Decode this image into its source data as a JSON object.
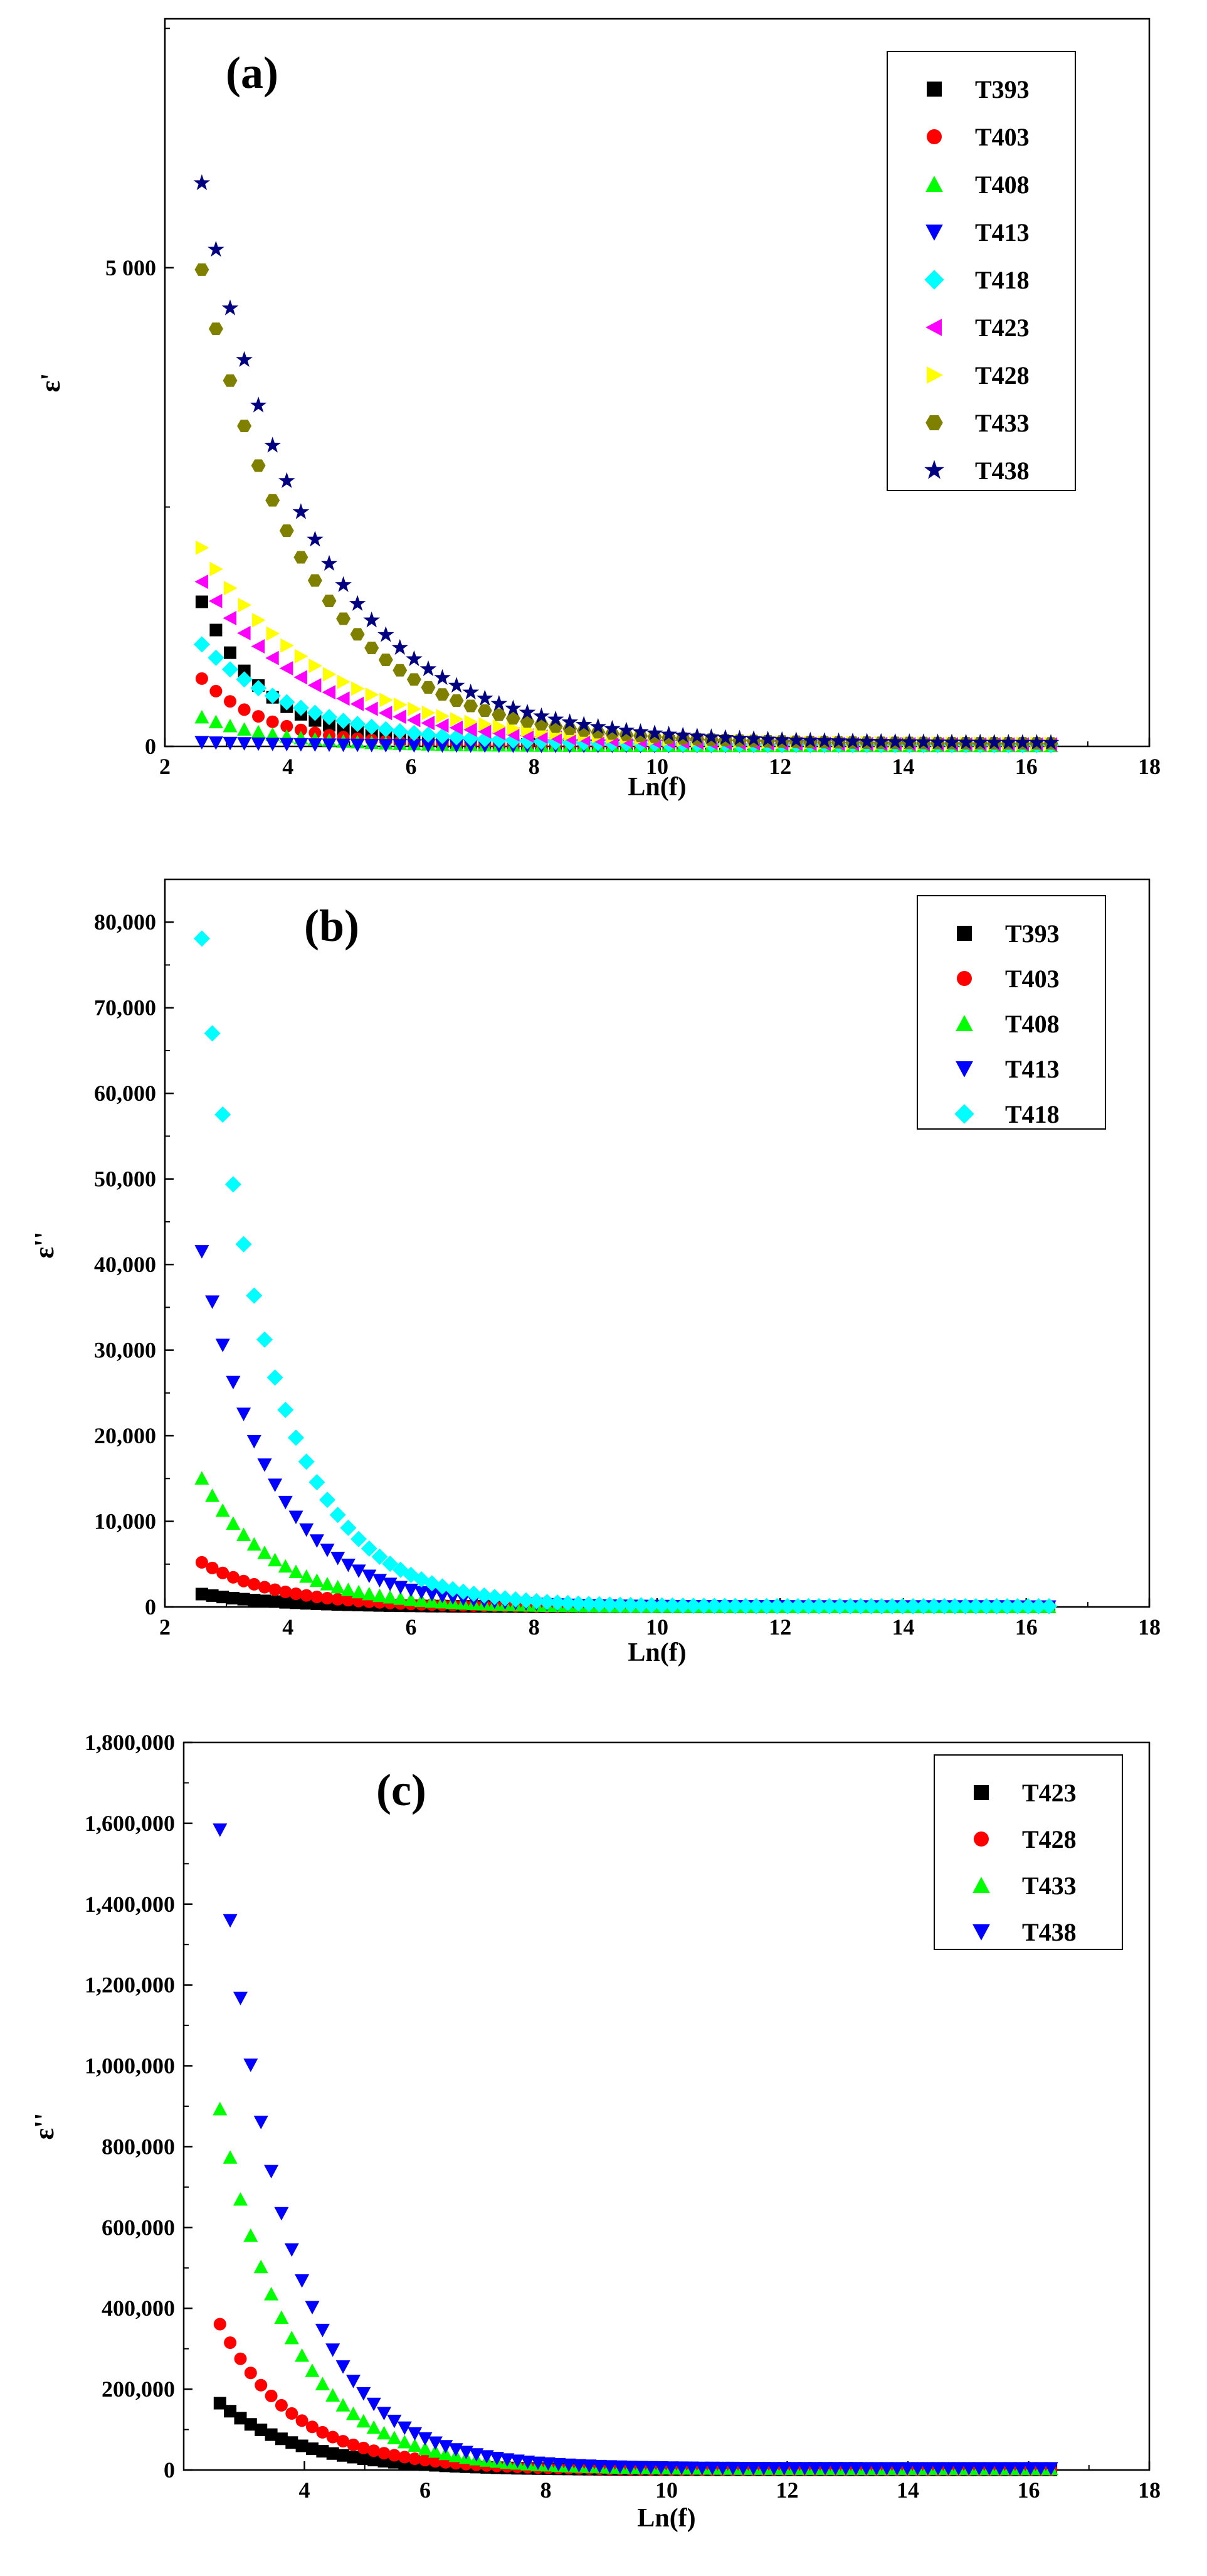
{
  "chart_data": [
    {
      "type": "scatter",
      "title": "(a)",
      "xlabel": "Ln(f)",
      "ylabel": "ε'",
      "xlim": [
        2,
        18
      ],
      "ylim": [
        0,
        7600
      ],
      "xticks": [
        2,
        4,
        6,
        8,
        10,
        12,
        14,
        16,
        18
      ],
      "yticks": [
        0,
        5000
      ],
      "ytick_labels": [
        "0",
        "5 000"
      ],
      "legend_position": "top-right",
      "x_start": 2.6,
      "x_end": 16.5,
      "x_step": 0.23,
      "series": [
        {
          "name": "T393",
          "marker": "square",
          "color": "#000000",
          "amp": 1500,
          "k": 0.95,
          "floor": 10
        },
        {
          "name": "T403",
          "marker": "circle",
          "color": "#ff0000",
          "amp": 700,
          "k": 0.9,
          "floor": 8
        },
        {
          "name": "T408",
          "marker": "triangle-up",
          "color": "#00ff00",
          "amp": 300,
          "k": 0.8,
          "floor": 5
        },
        {
          "name": "T413",
          "marker": "triangle-down",
          "color": "#0000ff",
          "amp": 40,
          "k": 0.5,
          "floor": 3
        },
        {
          "name": "T418",
          "marker": "diamond",
          "color": "#00ffff",
          "amp": 1050,
          "k": 0.62,
          "floor": 15
        },
        {
          "name": "T423",
          "marker": "triangle-left",
          "color": "#ff00ff",
          "amp": 1700,
          "k": 0.55,
          "floor": 20
        },
        {
          "name": "T428",
          "marker": "triangle-right",
          "color": "#ffff00",
          "amp": 2050,
          "k": 0.5,
          "floor": 25
        },
        {
          "name": "T433",
          "marker": "hexagon",
          "color": "#808000",
          "amp": 4950,
          "k": 0.58,
          "floor": 30
        },
        {
          "name": "T438",
          "marker": "star",
          "color": "#000080",
          "amp": 5850,
          "k": 0.55,
          "floor": 35
        }
      ]
    },
    {
      "type": "scatter",
      "title": "(b)",
      "xlabel": "Ln(f)",
      "ylabel": "ε''",
      "xlim": [
        2,
        18
      ],
      "ylim": [
        0,
        85000
      ],
      "xticks": [
        2,
        4,
        6,
        8,
        10,
        12,
        14,
        16,
        18
      ],
      "yticks": [
        0,
        10000,
        20000,
        30000,
        40000,
        50000,
        60000,
        70000,
        80000
      ],
      "ytick_labels": [
        "0",
        "10,000",
        "20,000",
        "30,000",
        "40,000",
        "50,000",
        "60,000",
        "70,000",
        "80,000"
      ],
      "legend_position": "top-right",
      "x_start": 2.6,
      "x_end": 16.5,
      "x_step": 0.17,
      "series": [
        {
          "name": "T393",
          "marker": "square",
          "color": "#000000",
          "amp": 1500,
          "k": 0.75,
          "floor": 5
        },
        {
          "name": "T403",
          "marker": "circle",
          "color": "#ff0000",
          "amp": 5200,
          "k": 0.8,
          "floor": 10
        },
        {
          "name": "T408",
          "marker": "triangle-up",
          "color": "#00ff00",
          "amp": 15000,
          "k": 0.85,
          "floor": 20
        },
        {
          "name": "T413",
          "marker": "triangle-down",
          "color": "#0000ff",
          "amp": 41500,
          "k": 0.9,
          "floor": 40
        },
        {
          "name": "T418",
          "marker": "diamond",
          "color": "#00ffff",
          "amp": 78000,
          "k": 0.9,
          "floor": 80
        }
      ]
    },
    {
      "type": "scatter",
      "title": "(c)",
      "xlabel": "Ln(f)",
      "ylabel": "ε''",
      "xlim": [
        2,
        18
      ],
      "ylim": [
        0,
        1800000
      ],
      "xticks": [
        4,
        6,
        8,
        10,
        12,
        14,
        16,
        18
      ],
      "yticks": [
        0,
        200000,
        400000,
        600000,
        800000,
        1000000,
        1200000,
        1400000,
        1600000,
        1800000
      ],
      "ytick_labels": [
        "0",
        "200,000",
        "400,000",
        "600,000",
        "800,000",
        "1,000,000",
        "1,200,000",
        "1,400,000",
        "1,600,000",
        "1,800,000"
      ],
      "legend_position": "top-right",
      "x_start": 2.6,
      "x_end": 16.5,
      "x_step": 0.17,
      "series": [
        {
          "name": "T423",
          "marker": "square",
          "color": "#000000",
          "amp": 165000,
          "k": 0.75,
          "floor": 300
        },
        {
          "name": "T428",
          "marker": "circle",
          "color": "#ff0000",
          "amp": 360000,
          "k": 0.8,
          "floor": 800
        },
        {
          "name": "T433",
          "marker": "triangle-up",
          "color": "#00ff00",
          "amp": 890000,
          "k": 0.85,
          "floor": 3000
        },
        {
          "name": "T438",
          "marker": "triangle-down",
          "color": "#0000ff",
          "amp": 1580000,
          "k": 0.9,
          "floor": 4000
        }
      ]
    }
  ]
}
